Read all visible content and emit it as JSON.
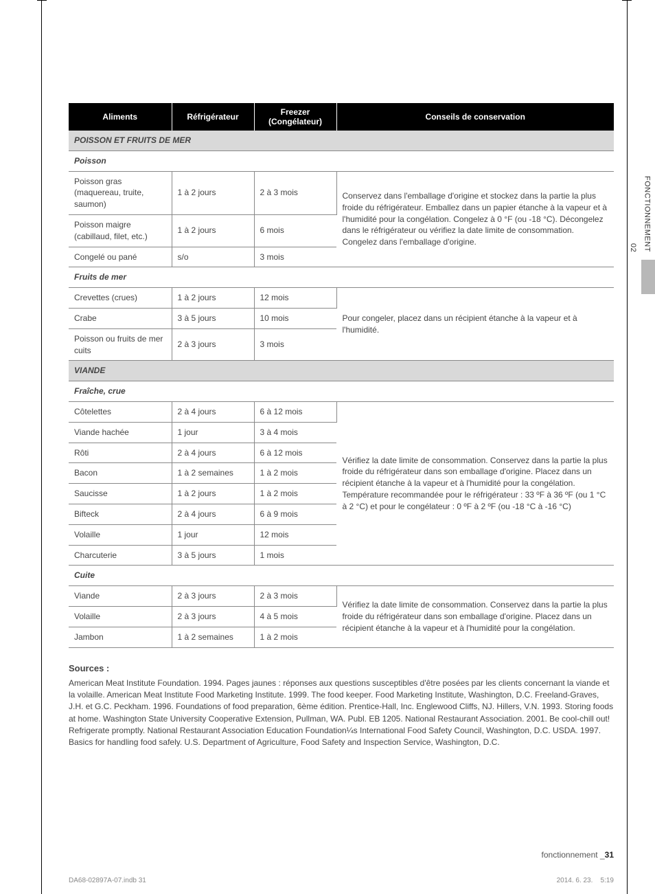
{
  "sideTab": {
    "section_no": "02",
    "section_label": "FONCTIONNEMENT"
  },
  "table": {
    "headers": [
      "Aliments",
      "Réfrigérateur",
      "Freezer\n(Congélateur)",
      "Conseils de conservation"
    ],
    "section_poisson": {
      "title": "POISSON ET FRUITS DE MER",
      "sub_poisson": "Poisson",
      "rows_poisson": [
        {
          "name": "Poisson gras (maquereau, truite, saumon)",
          "fridge": "1 à 2 jours",
          "freezer": "2 à 3 mois"
        },
        {
          "name": "Poisson maigre (cabillaud, filet, etc.)",
          "fridge": "1 à 2 jours",
          "freezer": "6 mois"
        },
        {
          "name": "Congelé ou pané",
          "fridge": "s/o",
          "freezer": "3 mois"
        }
      ],
      "tip_poisson": "Conservez dans l'emballage d'origine et stockez dans la partie la plus froide du réfrigérateur. Emballez dans un papier étanche à la vapeur et à l'humidité pour la congélation. Congelez à 0 °F (ou -18 °C). Décongelez dans le réfrigérateur ou vérifiez la date limite de consommation. Congelez dans l'emballage d'origine.",
      "sub_fruits": "Fruits de mer",
      "rows_fruits": [
        {
          "name": "Crevettes (crues)",
          "fridge": "1 à 2 jours",
          "freezer": "12 mois"
        },
        {
          "name": "Crabe",
          "fridge": "3 à 5 jours",
          "freezer": "10 mois"
        },
        {
          "name": "Poisson ou fruits de mer cuits",
          "fridge": "2 à 3 jours",
          "freezer": "3 mois"
        }
      ],
      "tip_fruits": "Pour congeler, placez dans un récipient étanche à la vapeur et à l'humidité."
    },
    "section_viande": {
      "title": "VIANDE",
      "sub_fraiche": "Fraîche, crue",
      "rows_fraiche": [
        {
          "name": "Côtelettes",
          "fridge": "2 à 4 jours",
          "freezer": "6 à 12 mois"
        },
        {
          "name": "Viande hachée",
          "fridge": "1 jour",
          "freezer": "3 à 4 mois"
        },
        {
          "name": "Rôti",
          "fridge": "2 à 4 jours",
          "freezer": "6 à 12 mois"
        },
        {
          "name": "Bacon",
          "fridge": "1 à 2 semaines",
          "freezer": "1 à 2 mois"
        },
        {
          "name": "Saucisse",
          "fridge": "1 à 2 jours",
          "freezer": "1 à 2 mois"
        },
        {
          "name": "Bifteck",
          "fridge": "2 à 4 jours",
          "freezer": "6 à 9 mois"
        },
        {
          "name": "Volaille",
          "fridge": "1 jour",
          "freezer": "12 mois"
        },
        {
          "name": "Charcuterie",
          "fridge": "3 à 5 jours",
          "freezer": "1 mois"
        }
      ],
      "tip_fraiche": "Vérifiez la date limite de consommation. Conservez dans la partie la plus froide du réfrigérateur dans son emballage d'origine. Placez dans un récipient étanche à la vapeur et à l'humidité pour la congélation. Température recommandée pour le réfrigérateur : 33 ºF à 36 ºF (ou 1 °C à 2 °C) et pour le congélateur : 0 ºF à 2 ºF (ou -18 °C à -16 °C)",
      "sub_cuite": "Cuite",
      "rows_cuite": [
        {
          "name": "Viande",
          "fridge": "2 à 3 jours",
          "freezer": "2 à 3 mois"
        },
        {
          "name": "Volaille",
          "fridge": "2 à 3 jours",
          "freezer": "4 à 5 mois"
        },
        {
          "name": "Jambon",
          "fridge": "1 à 2 semaines",
          "freezer": "1 à 2 mois"
        }
      ],
      "tip_cuite": "Vérifiez la date limite de consommation. Conservez dans la partie la plus froide du réfrigérateur dans son emballage d'origine. Placez dans un récipient étanche à la vapeur et à l'humidité pour la congélation."
    }
  },
  "sources": {
    "title": "Sources :",
    "body": "American Meat Institute Foundation. 1994. Pages jaunes : réponses aux questions susceptibles d'être posées par les clients concernant la viande et la volaille. American Meat Institute Food Marketing Institute. 1999. The food keeper. Food Marketing Institute, Washington, D.C. Freeland-Graves, J.H. et G.C. Peckham. 1996. Foundations of food preparation, 6ème édition. Prentice-Hall, Inc. Englewood Cliffs, NJ. Hillers, V.N. 1993. Storing foods at home. Washington State University Cooperative Extension, Pullman, WA. Publ. EB 1205.\nNational Restaurant Association. 2001. Be cool-chill out! Refrigerate promptly. National Restaurant Association Education Foundation¼s International Food Safety Council, Washington, D.C. USDA. 1997. Basics for handling food safely. U.S. Department of Agriculture, Food Safety and Inspection Service, Washington, D.C."
  },
  "footer": {
    "section": "fonctionnement",
    "sep": "_",
    "page": "31"
  },
  "bottom": {
    "file": "DA68-02897A-07.indb   31",
    "date": "2014. 6. 23.",
    "time": "5:19"
  }
}
